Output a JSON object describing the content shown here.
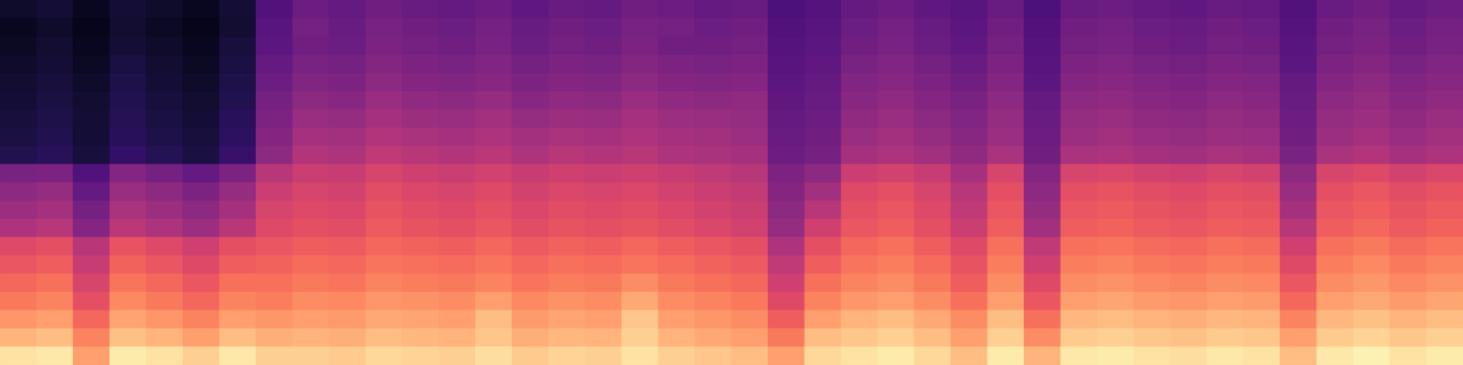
{
  "chart_data": {
    "type": "heatmap",
    "tick_labels": false,
    "color": "magma",
    "zlim": [
      0,
      100
    ],
    "cells": [
      [
        8,
        10,
        6,
        10,
        8,
        6,
        10,
        25,
        32,
        30,
        33,
        31,
        30,
        32,
        29,
        31,
        30,
        33,
        32,
        30,
        31,
        24,
        26,
        30,
        32,
        29,
        27,
        31,
        24,
        31,
        32,
        30,
        29,
        31,
        30,
        25,
        31,
        33,
        30,
        32
      ],
      [
        6,
        8,
        5,
        9,
        7,
        5,
        9,
        27,
        34,
        31,
        35,
        33,
        32,
        34,
        31,
        33,
        32,
        35,
        34,
        32,
        33,
        25,
        27,
        32,
        34,
        31,
        28,
        33,
        25,
        33,
        34,
        32,
        31,
        33,
        32,
        26,
        33,
        35,
        32,
        34
      ],
      [
        7,
        9,
        6,
        10,
        8,
        6,
        11,
        28,
        33,
        32,
        36,
        34,
        33,
        35,
        32,
        34,
        33,
        36,
        33,
        33,
        34,
        26,
        28,
        33,
        35,
        32,
        29,
        34,
        26,
        34,
        35,
        33,
        32,
        34,
        33,
        27,
        34,
        36,
        33,
        35
      ],
      [
        8,
        10,
        7,
        12,
        9,
        7,
        12,
        30,
        35,
        34,
        38,
        36,
        35,
        37,
        34,
        36,
        35,
        38,
        36,
        35,
        36,
        27,
        29,
        35,
        37,
        34,
        31,
        36,
        27,
        36,
        37,
        35,
        34,
        36,
        35,
        28,
        36,
        38,
        35,
        37
      ],
      [
        9,
        11,
        8,
        13,
        10,
        8,
        13,
        32,
        37,
        36,
        40,
        38,
        37,
        39,
        36,
        38,
        37,
        40,
        38,
        37,
        38,
        28,
        30,
        37,
        39,
        36,
        33,
        38,
        28,
        38,
        39,
        37,
        36,
        38,
        37,
        30,
        38,
        40,
        37,
        39
      ],
      [
        10,
        12,
        9,
        14,
        11,
        9,
        14,
        34,
        40,
        39,
        43,
        41,
        40,
        42,
        39,
        41,
        40,
        43,
        41,
        40,
        41,
        29,
        31,
        39,
        41,
        38,
        35,
        40,
        30,
        40,
        41,
        39,
        38,
        40,
        39,
        31,
        40,
        42,
        39,
        41
      ],
      [
        11,
        13,
        10,
        15,
        12,
        10,
        16,
        36,
        43,
        42,
        46,
        44,
        43,
        45,
        42,
        44,
        43,
        46,
        44,
        43,
        42,
        30,
        32,
        41,
        43,
        40,
        37,
        42,
        31,
        42,
        43,
        41,
        40,
        42,
        41,
        32,
        42,
        44,
        41,
        43
      ],
      [
        12,
        14,
        10,
        16,
        13,
        11,
        17,
        38,
        46,
        45,
        49,
        47,
        46,
        48,
        45,
        47,
        46,
        48,
        46,
        45,
        44,
        31,
        33,
        43,
        45,
        42,
        39,
        44,
        32,
        44,
        45,
        43,
        42,
        44,
        43,
        33,
        44,
        46,
        43,
        45
      ],
      [
        14,
        16,
        11,
        18,
        15,
        12,
        19,
        40,
        49,
        48,
        52,
        50,
        49,
        51,
        48,
        50,
        49,
        50,
        48,
        47,
        46,
        32,
        34,
        46,
        48,
        45,
        41,
        47,
        33,
        47,
        48,
        46,
        45,
        47,
        46,
        35,
        47,
        49,
        46,
        48
      ],
      [
        35,
        36,
        25,
        38,
        34,
        30,
        36,
        50,
        55,
        54,
        58,
        56,
        55,
        57,
        54,
        56,
        55,
        56,
        54,
        52,
        50,
        36,
        40,
        55,
        57,
        54,
        46,
        58,
        38,
        58,
        59,
        57,
        56,
        58,
        57,
        40,
        58,
        60,
        57,
        59
      ],
      [
        40,
        42,
        30,
        43,
        40,
        36,
        42,
        55,
        58,
        57,
        61,
        59,
        58,
        60,
        57,
        59,
        58,
        59,
        57,
        55,
        53,
        38,
        45,
        60,
        62,
        58,
        50,
        62,
        40,
        62,
        63,
        61,
        60,
        62,
        61,
        43,
        62,
        64,
        61,
        63
      ],
      [
        44,
        46,
        34,
        47,
        44,
        40,
        46,
        58,
        60,
        59,
        63,
        61,
        60,
        62,
        59,
        61,
        60,
        61,
        59,
        57,
        55,
        40,
        50,
        62,
        64,
        60,
        52,
        64,
        42,
        64,
        65,
        63,
        62,
        64,
        63,
        46,
        64,
        66,
        63,
        65
      ],
      [
        48,
        50,
        38,
        51,
        48,
        44,
        50,
        60,
        62,
        61,
        65,
        63,
        62,
        64,
        61,
        63,
        62,
        63,
        61,
        59,
        57,
        42,
        56,
        64,
        66,
        62,
        55,
        66,
        45,
        66,
        67,
        65,
        64,
        66,
        65,
        50,
        66,
        68,
        65,
        67
      ],
      [
        60,
        62,
        50,
        63,
        60,
        56,
        62,
        64,
        66,
        65,
        68,
        67,
        66,
        68,
        65,
        67,
        66,
        68,
        66,
        64,
        62,
        48,
        62,
        68,
        70,
        66,
        60,
        70,
        52,
        70,
        71,
        69,
        68,
        70,
        69,
        56,
        70,
        72,
        69,
        71
      ],
      [
        64,
        66,
        54,
        67,
        64,
        60,
        66,
        67,
        69,
        68,
        71,
        70,
        69,
        71,
        68,
        70,
        69,
        71,
        69,
        67,
        65,
        52,
        66,
        71,
        73,
        69,
        63,
        73,
        56,
        73,
        74,
        72,
        71,
        73,
        72,
        60,
        73,
        75,
        72,
        74
      ],
      [
        68,
        70,
        58,
        71,
        68,
        64,
        70,
        70,
        72,
        71,
        74,
        73,
        72,
        74,
        71,
        73,
        72,
        76,
        72,
        70,
        68,
        56,
        70,
        74,
        76,
        72,
        66,
        76,
        60,
        76,
        77,
        75,
        74,
        76,
        75,
        64,
        76,
        78,
        75,
        77
      ],
      [
        72,
        74,
        62,
        75,
        72,
        68,
        74,
        73,
        76,
        75,
        78,
        77,
        76,
        80,
        75,
        77,
        76,
        82,
        76,
        74,
        72,
        60,
        74,
        78,
        80,
        76,
        70,
        80,
        64,
        80,
        81,
        79,
        78,
        80,
        79,
        68,
        80,
        82,
        79,
        81
      ],
      [
        78,
        80,
        68,
        81,
        78,
        74,
        80,
        78,
        80,
        79,
        82,
        81,
        80,
        86,
        79,
        81,
        80,
        88,
        80,
        78,
        76,
        66,
        80,
        84,
        86,
        82,
        76,
        86,
        70,
        85,
        86,
        84,
        83,
        85,
        84,
        74,
        85,
        87,
        84,
        86
      ],
      [
        84,
        86,
        74,
        87,
        84,
        80,
        86,
        83,
        84,
        83,
        86,
        85,
        84,
        88,
        83,
        85,
        84,
        90,
        84,
        82,
        80,
        72,
        86,
        88,
        90,
        86,
        80,
        90,
        76,
        89,
        90,
        88,
        87,
        89,
        88,
        80,
        89,
        91,
        88,
        90
      ],
      [
        94,
        95,
        80,
        96,
        94,
        90,
        95,
        90,
        90,
        89,
        92,
        91,
        90,
        93,
        89,
        91,
        90,
        94,
        90,
        88,
        86,
        80,
        92,
        94,
        96,
        92,
        86,
        96,
        84,
        95,
        96,
        94,
        93,
        95,
        94,
        86,
        95,
        97,
        94,
        96
      ]
    ]
  }
}
